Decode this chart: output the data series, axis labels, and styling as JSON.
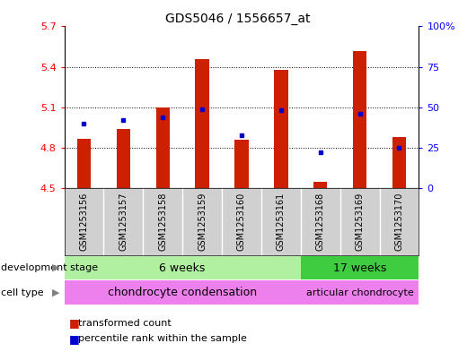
{
  "title": "GDS5046 / 1556657_at",
  "samples": [
    "GSM1253156",
    "GSM1253157",
    "GSM1253158",
    "GSM1253159",
    "GSM1253160",
    "GSM1253161",
    "GSM1253168",
    "GSM1253169",
    "GSM1253170"
  ],
  "transformed_count": [
    4.87,
    4.94,
    5.1,
    5.46,
    4.86,
    5.38,
    4.55,
    5.52,
    4.88
  ],
  "percentile_rank": [
    40,
    42,
    44,
    49,
    33,
    48,
    22,
    46,
    25
  ],
  "ylim_left": [
    4.5,
    5.7
  ],
  "ylim_right": [
    0,
    100
  ],
  "yticks_left": [
    4.5,
    4.8,
    5.1,
    5.4,
    5.7
  ],
  "yticks_right": [
    0,
    25,
    50,
    75,
    100
  ],
  "ytick_right_labels": [
    "0",
    "25",
    "50",
    "75",
    "100%"
  ],
  "dev_stage_color_light": "#b0f0a0",
  "dev_stage_color_dark": "#40cc40",
  "cell_type_color": "#ee80ee",
  "bar_color": "#cc2000",
  "dot_color": "#0000cc",
  "bar_width": 0.35,
  "base_value": 4.5,
  "split_index": 6,
  "n_samples": 9
}
